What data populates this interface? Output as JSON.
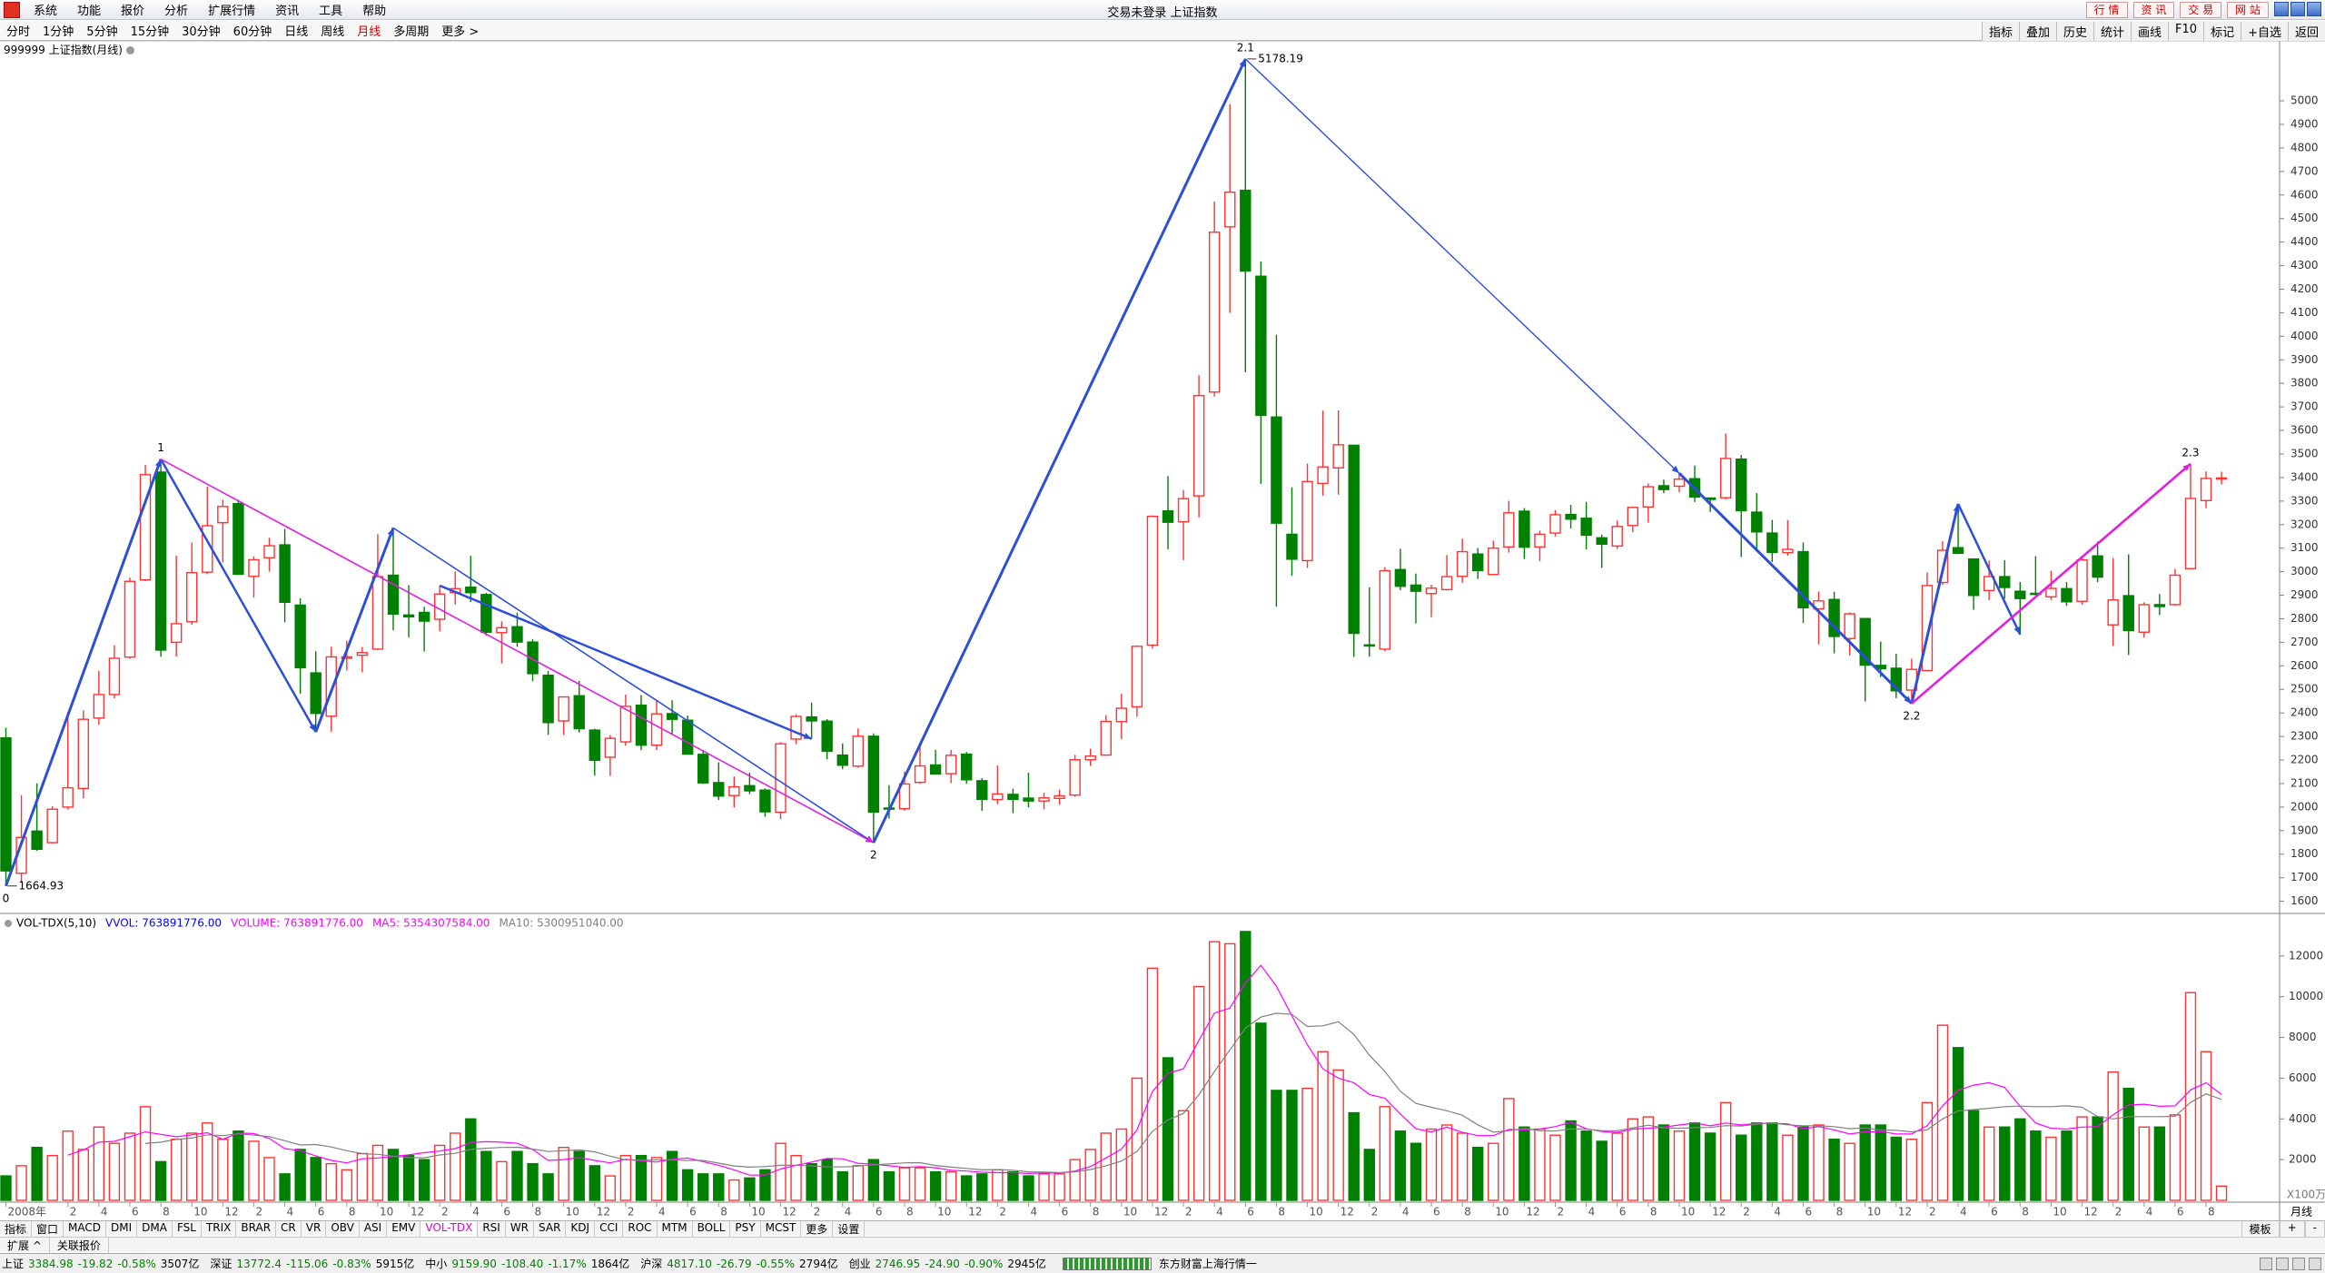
{
  "title_bar": {
    "menu": [
      "系统",
      "功能",
      "报价",
      "分析",
      "扩展行情",
      "资讯",
      "工具",
      "帮助"
    ],
    "title": "交易未登录 上证指数",
    "buttons": [
      "行 情",
      "资 讯",
      "交 易",
      "网 站"
    ]
  },
  "toolbar": {
    "periods": [
      "分时",
      "1分钟",
      "5分钟",
      "15分钟",
      "30分钟",
      "60分钟",
      "日线",
      "周线",
      "月线",
      "多周期",
      "更多 >"
    ],
    "active": "月线",
    "tools": [
      "指标",
      "叠加",
      "历史",
      "统计",
      "画线",
      "F10",
      "标记",
      "+自选",
      "返回"
    ]
  },
  "chart_header": "999999 上证指数(月线)",
  "chart_data": [
    {
      "type": "candlestick",
      "up_color": "#ff3232",
      "down_color": "#008000",
      "grid": false,
      "ylim": [
        1556,
        5251
      ],
      "yticks": [
        1600,
        1700,
        1800,
        1900,
        2000,
        2100,
        2200,
        2300,
        2400,
        2500,
        2600,
        2700,
        2800,
        2900,
        3000,
        3100,
        3200,
        3300,
        3400,
        3500,
        3600,
        3700,
        3800,
        3900,
        4000,
        4100,
        4200,
        4300,
        4400,
        4500,
        4600,
        4700,
        4800,
        4900,
        5000
      ],
      "wave_labels": [
        "0",
        "1",
        "2",
        "2.1",
        "2.2",
        "2.3"
      ],
      "categories": [
        "2008年",
        null,
        null,
        null,
        "2",
        null,
        "4",
        null,
        "6",
        null,
        "8",
        null,
        "10",
        null,
        "12",
        null,
        "2",
        null,
        "4",
        null,
        "6",
        null,
        "8",
        null,
        "10",
        null,
        "12",
        null,
        "2",
        null,
        "4",
        null,
        "6",
        null,
        "8",
        null,
        "10",
        null,
        "12",
        null,
        "2",
        null,
        "4",
        null,
        "6",
        null,
        "8",
        null,
        "10",
        null,
        "12",
        null,
        "2",
        null,
        "4",
        null,
        "6",
        null,
        "8",
        null,
        "10",
        null,
        "12",
        null,
        "2",
        null,
        "4",
        null,
        "6",
        null,
        "8",
        null,
        "10",
        null,
        "12",
        null,
        "2",
        null,
        "4",
        null,
        "6",
        null,
        "8",
        null,
        "10",
        null,
        "12",
        null,
        "2",
        null,
        "4",
        null,
        "6",
        null,
        "8",
        null,
        "10",
        null,
        "12",
        null,
        "2",
        null,
        "4",
        null,
        "6",
        null,
        "8",
        null,
        "10",
        null,
        "12",
        null,
        "2",
        null,
        "4",
        null,
        "6",
        null,
        "8",
        null,
        "10",
        null,
        "12",
        null,
        "2",
        null,
        "4",
        null,
        "6",
        null,
        "8",
        null,
        "10",
        null,
        "12",
        null,
        "2",
        null,
        "4",
        null,
        "6",
        null,
        "8",
        null
      ],
      "candles": [
        [
          2294,
          2337,
          1664.93,
          1729
        ],
        [
          1719,
          2051,
          1679,
          1871
        ],
        [
          1898,
          2101,
          1814,
          1821
        ],
        [
          1849,
          2004,
          1845,
          1991
        ],
        [
          2000,
          2402,
          1990,
          2082
        ],
        [
          2079,
          2411,
          2037,
          2373
        ],
        [
          2378,
          2579,
          2350,
          2478
        ],
        [
          2478,
          2688,
          2462,
          2632
        ],
        [
          2637,
          2975,
          2630,
          2959
        ],
        [
          2965,
          3454,
          2960,
          3412
        ],
        [
          3423,
          3478,
          2639,
          2667
        ],
        [
          2700,
          3068,
          2640,
          2779
        ],
        [
          2787,
          3124,
          2774,
          2996
        ],
        [
          2998,
          3361,
          2990,
          3195
        ],
        [
          3208,
          3306,
          3039,
          3277
        ],
        [
          3289,
          3306,
          2987,
          2989
        ],
        [
          2980,
          3065,
          2890,
          3051
        ],
        [
          3059,
          3144,
          3000,
          3110
        ],
        [
          3114,
          3181,
          2785,
          2870
        ],
        [
          2858,
          2887,
          2481,
          2592
        ],
        [
          2570,
          2662,
          2319,
          2398
        ],
        [
          2386,
          2681,
          2320,
          2638
        ],
        [
          2632,
          2707,
          2580,
          2638
        ],
        [
          2645,
          2680,
          2573,
          2656
        ],
        [
          2671,
          3159,
          2667,
          2979
        ],
        [
          2985,
          3186,
          2751,
          2820
        ],
        [
          2816,
          2943,
          2721,
          2808
        ],
        [
          2827,
          2851,
          2661,
          2790
        ],
        [
          2798,
          2941,
          2746,
          2905
        ],
        [
          2911,
          3001,
          2860,
          2928
        ],
        [
          2934,
          3067,
          2871,
          2911
        ],
        [
          2903,
          2910,
          2728,
          2743
        ],
        [
          2741,
          2789,
          2610,
          2762
        ],
        [
          2766,
          2826,
          2681,
          2701
        ],
        [
          2701,
          2714,
          2535,
          2567
        ],
        [
          2560,
          2578,
          2307,
          2359
        ],
        [
          2366,
          2468,
          2307,
          2468
        ],
        [
          2473,
          2536,
          2317,
          2333
        ],
        [
          2327,
          2333,
          2134,
          2199
        ],
        [
          2212,
          2306,
          2132,
          2292
        ],
        [
          2277,
          2478,
          2261,
          2428
        ],
        [
          2433,
          2476,
          2242,
          2263
        ],
        [
          2263,
          2454,
          2242,
          2396
        ],
        [
          2397,
          2454,
          2306,
          2373
        ],
        [
          2369,
          2389,
          2223,
          2225
        ],
        [
          2224,
          2243,
          2098,
          2103
        ],
        [
          2104,
          2190,
          2030,
          2047
        ],
        [
          2049,
          2130,
          1999,
          2086
        ],
        [
          2091,
          2146,
          2055,
          2069
        ],
        [
          2072,
          2080,
          1959,
          1980
        ],
        [
          1978,
          2276,
          1949,
          2269
        ],
        [
          2289,
          2394,
          2267,
          2385
        ],
        [
          2383,
          2444,
          2290,
          2366
        ],
        [
          2365,
          2374,
          2203,
          2237
        ],
        [
          2221,
          2270,
          2161,
          2178
        ],
        [
          2174,
          2334,
          2168,
          2301
        ],
        [
          2301,
          2313,
          1849,
          1979
        ],
        [
          1996,
          2093,
          1951,
          1994
        ],
        [
          1993,
          2151,
          1985,
          2098
        ],
        [
          2105,
          2270,
          2100,
          2175
        ],
        [
          2179,
          2243,
          2137,
          2141
        ],
        [
          2142,
          2243,
          2102,
          2220
        ],
        [
          2225,
          2234,
          2099,
          2116
        ],
        [
          2112,
          2123,
          1984,
          2033
        ],
        [
          2032,
          2177,
          2013,
          2056
        ],
        [
          2054,
          2078,
          1974,
          2033
        ],
        [
          2038,
          2146,
          1999,
          2026
        ],
        [
          2026,
          2061,
          1991,
          2039
        ],
        [
          2037,
          2074,
          2010,
          2048
        ],
        [
          2051,
          2222,
          2044,
          2201
        ],
        [
          2201,
          2248,
          2175,
          2217
        ],
        [
          2221,
          2391,
          2218,
          2364
        ],
        [
          2363,
          2481,
          2289,
          2420
        ],
        [
          2426,
          2687,
          2384,
          2683
        ],
        [
          2688,
          3239,
          2673,
          3235
        ],
        [
          3258,
          3406,
          3095,
          3210
        ],
        [
          3212,
          3347,
          3049,
          3310
        ],
        [
          3322,
          3835,
          3231,
          3748
        ],
        [
          3763,
          4572,
          3744,
          4442
        ],
        [
          4465,
          4986,
          4099,
          4612
        ],
        [
          4620,
          5178.19,
          3847,
          4277
        ],
        [
          4255,
          4318,
          3373,
          3664
        ],
        [
          3657,
          4006,
          2851,
          3206
        ],
        [
          3159,
          3358,
          2983,
          3053
        ],
        [
          3047,
          3459,
          3016,
          3383
        ],
        [
          3375,
          3684,
          3323,
          3445
        ],
        [
          3441,
          3685,
          3327,
          3539
        ],
        [
          3537,
          3539,
          2638,
          2738
        ],
        [
          2689,
          2934,
          2639,
          2688
        ],
        [
          2671,
          3019,
          2662,
          3004
        ],
        [
          3009,
          3097,
          2921,
          2938
        ],
        [
          2943,
          2992,
          2780,
          2917
        ],
        [
          2907,
          2944,
          2807,
          2930
        ],
        [
          2924,
          3071,
          2920,
          2979
        ],
        [
          2980,
          3140,
          2953,
          3085
        ],
        [
          3075,
          3101,
          2969,
          3005
        ],
        [
          2988,
          3132,
          2985,
          3100
        ],
        [
          3105,
          3301,
          3081,
          3250
        ],
        [
          3257,
          3270,
          3054,
          3104
        ],
        [
          3105,
          3174,
          3044,
          3159
        ],
        [
          3164,
          3262,
          3150,
          3242
        ],
        [
          3243,
          3284,
          3183,
          3223
        ],
        [
          3227,
          3296,
          3095,
          3155
        ],
        [
          3144,
          3157,
          3016,
          3117
        ],
        [
          3109,
          3217,
          3097,
          3192
        ],
        [
          3196,
          3276,
          3168,
          3273
        ],
        [
          3275,
          3374,
          3208,
          3361
        ],
        [
          3365,
          3391,
          3334,
          3349
        ],
        [
          3363,
          3418,
          3337,
          3393
        ],
        [
          3395,
          3451,
          3296,
          3317
        ],
        [
          3313,
          3315,
          3254,
          3307
        ],
        [
          3314,
          3587,
          3306,
          3481
        ],
        [
          3478,
          3496,
          3062,
          3259
        ],
        [
          3253,
          3334,
          3091,
          3169
        ],
        [
          3164,
          3220,
          3041,
          3082
        ],
        [
          3081,
          3219,
          3068,
          3095
        ],
        [
          3085,
          3124,
          2782,
          2847
        ],
        [
          2842,
          2916,
          2691,
          2876
        ],
        [
          2882,
          2915,
          2653,
          2725
        ],
        [
          2716,
          2827,
          2644,
          2821
        ],
        [
          2801,
          2803,
          2449,
          2603
        ],
        [
          2602,
          2703,
          2552,
          2588
        ],
        [
          2590,
          2651,
          2463,
          2494
        ],
        [
          2497,
          2630,
          2440,
          2585
        ],
        [
          2580,
          2997,
          2577,
          2941
        ],
        [
          2954,
          3129,
          2944,
          3091
        ],
        [
          3102,
          3288,
          3080,
          3078
        ],
        [
          3054,
          3056,
          2838,
          2899
        ],
        [
          2920,
          3048,
          2880,
          2979
        ],
        [
          2979,
          3049,
          2885,
          2933
        ],
        [
          2917,
          2956,
          2733,
          2886
        ],
        [
          2908,
          3066,
          2900,
          2905
        ],
        [
          2893,
          3004,
          2880,
          2929
        ],
        [
          2928,
          2956,
          2855,
          2872
        ],
        [
          2874,
          3062,
          2860,
          3050
        ],
        [
          3067,
          3128,
          2955,
          2977
        ],
        [
          2774,
          3058,
          2685,
          2880
        ],
        [
          2898,
          3074,
          2646,
          2750
        ],
        [
          2743,
          2870,
          2720,
          2860
        ],
        [
          2860,
          2905,
          2816,
          2852
        ],
        [
          2860,
          3012,
          2856,
          2985
        ],
        [
          3013,
          3458,
          3011,
          3311
        ],
        [
          3302,
          3426,
          3270,
          3396
        ],
        [
          3395,
          3425,
          3370,
          3398
        ]
      ]
    },
    {
      "type": "bar",
      "unit": "X100万",
      "ylim": [
        0,
        14000
      ],
      "yticks": [
        2000,
        4000,
        6000,
        8000,
        10000,
        12000
      ],
      "legend": [
        {
          "text": "VOL-TDX(5,10)",
          "color": "#000000"
        },
        {
          "text": "VVOL: 763891776.00",
          "color": "#0000ff"
        },
        {
          "text": "VOLUME: 763891776.00",
          "color": "#ff00ff"
        },
        {
          "text": "MA5: 5354307584.00",
          "color": "#ff00ff"
        },
        {
          "text": "MA10: 5300951040.00",
          "color": "#808080"
        }
      ],
      "values": [
        1200,
        1700,
        2600,
        2200,
        3400,
        2500,
        3600,
        2800,
        3300,
        4600,
        1900,
        3000,
        3300,
        3800,
        3000,
        3400,
        2900,
        2100,
        1300,
        2500,
        2100,
        1800,
        1500,
        2300,
        2700,
        2500,
        2200,
        2000,
        2700,
        3300,
        4000,
        2400,
        1900,
        2400,
        1800,
        1300,
        2600,
        2400,
        1700,
        1200,
        2200,
        2200,
        2100,
        2400,
        1500,
        1300,
        1300,
        1000,
        1100,
        1500,
        2800,
        2200,
        1800,
        2000,
        1400,
        1700,
        2000,
        1400,
        1600,
        1600,
        1400,
        1400,
        1200,
        1300,
        1500,
        1400,
        1200,
        1300,
        1300,
        2000,
        2500,
        3300,
        3500,
        6000,
        11400,
        7000,
        4400,
        10500,
        12700,
        12600,
        13200,
        8700,
        5400,
        5400,
        5500,
        7300,
        6400,
        4300,
        2500,
        4600,
        3400,
        2800,
        3500,
        3700,
        3300,
        2600,
        2800,
        5000,
        3600,
        3500,
        3200,
        3900,
        3400,
        2900,
        3300,
        4000,
        4100,
        3700,
        3400,
        3800,
        3300,
        4800,
        3200,
        3800,
        3800,
        3200,
        3600,
        3700,
        3000,
        2800,
        3700,
        3700,
        3100,
        3000,
        4800,
        8600,
        7500,
        4400,
        3600,
        3600,
        4000,
        3400,
        3100,
        3400,
        4100,
        4100,
        6300,
        5500,
        3600,
        3600,
        4200,
        10200,
        7300,
        700
      ]
    }
  ],
  "period_label": "月线",
  "indicator_tabs": [
    "指标",
    "窗口",
    "MACD",
    "DMI",
    "DMA",
    "FSL",
    "TRIX",
    "BRAR",
    "CR",
    "VR",
    "OBV",
    "ASI",
    "EMV",
    "VOL-TDX",
    "RSI",
    "WR",
    "SAR",
    "KDJ",
    "CCI",
    "ROC",
    "MTM",
    "BOLL",
    "PSY",
    "MCST",
    "更多",
    "设置"
  ],
  "active_tab": "VOL-TDX",
  "template_buttons": [
    "模板",
    "+",
    "-"
  ],
  "extension_row": [
    "扩展 ^",
    "关联报价"
  ],
  "status_bar": {
    "indices": [
      {
        "name": "上证",
        "price": "3384.98",
        "change": "-19.82",
        "percent": "-0.58%",
        "amount": "3507亿"
      },
      {
        "name": "深证",
        "price": "13772.4",
        "change": "-115.06",
        "percent": "-0.83%",
        "amount": "5915亿"
      },
      {
        "name": "中小",
        "price": "9159.90",
        "change": "-108.40",
        "percent": "-1.17%",
        "amount": "1864亿"
      },
      {
        "name": "沪深",
        "price": "4817.10",
        "change": "-26.79",
        "percent": "-0.55%",
        "amount": "2794亿"
      },
      {
        "name": "创业",
        "price": "2746.95",
        "change": "-24.90",
        "percent": "-0.90%",
        "amount": "2945亿"
      }
    ],
    "feed": "东方财富上海行情一"
  }
}
